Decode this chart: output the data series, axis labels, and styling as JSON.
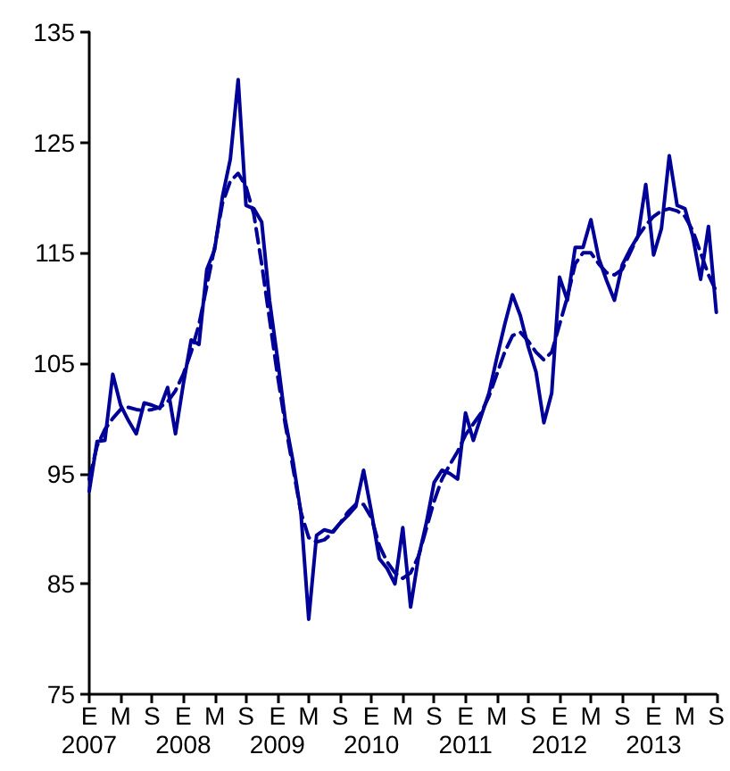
{
  "chart_data": {
    "type": "line",
    "categories": [
      "E\n2007",
      null,
      null,
      null,
      "M",
      null,
      null,
      null,
      "S",
      null,
      null,
      null,
      "E\n2008",
      null,
      null,
      null,
      "M",
      null,
      null,
      null,
      "S",
      null,
      null,
      null,
      "E\n2009",
      null,
      null,
      null,
      "M",
      null,
      null,
      null,
      "S",
      null,
      null,
      null,
      "E\n2010",
      null,
      null,
      null,
      "M",
      null,
      null,
      null,
      "S",
      null,
      null,
      null,
      "E\n2011",
      null,
      null,
      null,
      "M",
      null,
      null,
      null,
      "S",
      null,
      null,
      null,
      "E\n2012",
      null,
      null,
      null,
      "M",
      null,
      null,
      null,
      "S",
      null,
      null,
      null,
      "E\n2013",
      null,
      null,
      null,
      "M",
      null,
      null,
      null,
      "S"
    ],
    "series": [
      {
        "color": "#000099",
        "line_style": "solid",
        "values": [
          93.4,
          97.9,
          98.0,
          104.0,
          101.2,
          99.8,
          98.6,
          101.4,
          101.2,
          100.9,
          102.8,
          98.6,
          103.1,
          107.1,
          106.7,
          113.5,
          115.3,
          120.1,
          123.5,
          130.7,
          119.3,
          119.0,
          117.8,
          110.7,
          105.5,
          99.9,
          96.1,
          91.5,
          81.8,
          89.4,
          89.9,
          89.7,
          90.5,
          91.2,
          92.0,
          95.3,
          91.5,
          87.3,
          86.4,
          85.0,
          90.1,
          82.9,
          87.4,
          90.5,
          94.2,
          95.3,
          95.0,
          94.5,
          100.5,
          98.0,
          100.2,
          102.3,
          105.5,
          108.5,
          111.2,
          109.3,
          106.5,
          104.2,
          99.6,
          102.3,
          112.8,
          110.7,
          115.5,
          115.5,
          118.0,
          114.5,
          112.5,
          110.7,
          113.9,
          115.3,
          116.5,
          121.2,
          114.8,
          117.2,
          123.8,
          119.3,
          119.0,
          116.5,
          112.6,
          117.4,
          109.6
        ]
      },
      {
        "color": "#000099",
        "line_style": "dashed",
        "values": [
          94.5,
          97.5,
          99.0,
          100.0,
          100.8,
          101.0,
          100.8,
          100.7,
          100.8,
          101.0,
          101.5,
          102.5,
          104.0,
          106.0,
          108.5,
          112.0,
          115.5,
          119.5,
          121.5,
          122.2,
          121.0,
          118.5,
          114.0,
          109.0,
          104.0,
          99.5,
          95.5,
          91.5,
          89.2,
          88.8,
          89.0,
          89.6,
          90.5,
          91.5,
          92.2,
          92.2,
          91.0,
          88.5,
          87.0,
          86.0,
          85.5,
          86.0,
          87.5,
          90.0,
          92.5,
          94.5,
          95.8,
          97.0,
          98.5,
          99.5,
          100.5,
          102.0,
          104.0,
          106.0,
          107.5,
          107.8,
          107.0,
          106.0,
          105.3,
          106.0,
          108.5,
          111.0,
          114.0,
          115.0,
          115.0,
          114.0,
          113.2,
          113.0,
          113.5,
          115.0,
          116.5,
          117.5,
          118.3,
          118.8,
          119.0,
          118.8,
          118.3,
          117.0,
          115.0,
          113.0,
          111.5
        ]
      }
    ],
    "ylim": [
      75,
      135
    ],
    "yticks": [
      75,
      85,
      95,
      105,
      115,
      125,
      135
    ],
    "grid": false,
    "marker": "none"
  }
}
